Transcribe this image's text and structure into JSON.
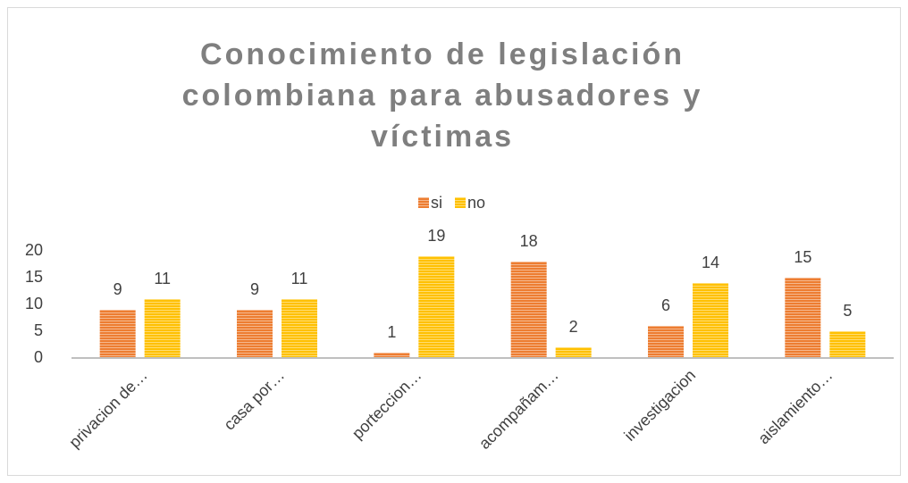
{
  "chart_data": {
    "type": "bar",
    "title": "Conocimiento de legislación colombiana para abusadores y víctimas",
    "categories": [
      "privacion de…",
      "casa por…",
      "porteccion…",
      "acompañam…",
      "investigacion",
      "aislamiento…"
    ],
    "series": [
      {
        "name": "si",
        "color": "#ED7D31",
        "values": [
          9,
          9,
          1,
          18,
          6,
          15
        ]
      },
      {
        "name": "no",
        "color": "#FFC000",
        "values": [
          11,
          11,
          19,
          2,
          14,
          5
        ]
      }
    ],
    "ylim": [
      0,
      20
    ],
    "yticks": [
      0,
      5,
      10,
      15,
      20
    ],
    "grid": false,
    "legend": "top"
  }
}
